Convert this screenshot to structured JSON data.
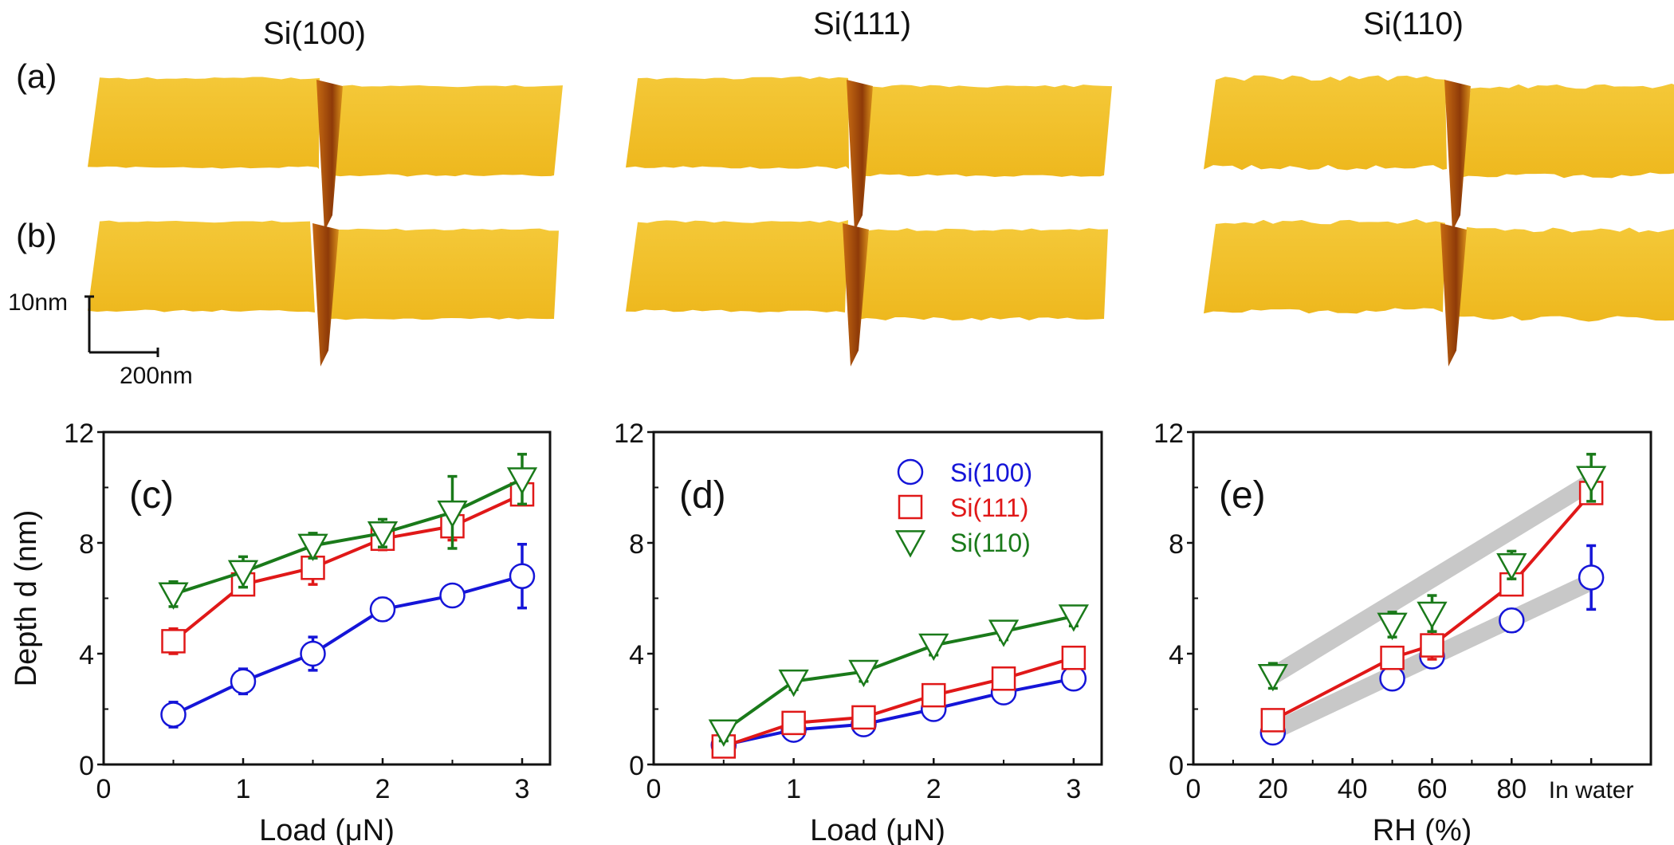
{
  "figure": {
    "columns": [
      "Si(100)",
      "Si(111)",
      "Si(110)"
    ],
    "row_labels": [
      "(a)",
      "(b)"
    ],
    "scale_bar": {
      "vertical": "10nm",
      "horizontal": "200nm"
    },
    "afm_color": "#f2c230"
  },
  "chart_data": [
    {
      "panel": "(c)",
      "type": "line",
      "xlabel": "Load (μN)",
      "ylabel": "Depth d (nm)",
      "xlim": [
        0,
        3.2
      ],
      "ylim": [
        0,
        12
      ],
      "xticks": [
        0,
        1,
        2,
        3
      ],
      "yticks": [
        0,
        4,
        8,
        12
      ],
      "x": [
        0.5,
        1.0,
        1.5,
        2.0,
        2.5,
        3.0
      ],
      "series": [
        {
          "name": "Si(100)",
          "color": "#1515d8",
          "marker": "circle",
          "values": [
            1.8,
            3.0,
            4.0,
            5.6,
            6.1,
            6.8
          ],
          "errors": [
            0.45,
            0.45,
            0.6,
            0.4,
            0.25,
            1.15
          ]
        },
        {
          "name": "Si(111)",
          "color": "#e01818",
          "marker": "square",
          "values": [
            4.45,
            6.5,
            7.1,
            8.15,
            8.6,
            9.75
          ],
          "errors": [
            0.45,
            0.35,
            0.6,
            0.4,
            0.5,
            0.3
          ]
        },
        {
          "name": "Si(110)",
          "color": "#1a7a1a",
          "marker": "triangle-down",
          "values": [
            6.15,
            6.95,
            7.9,
            8.35,
            9.1,
            10.3
          ],
          "errors": [
            0.45,
            0.55,
            0.45,
            0.5,
            1.3,
            0.9
          ]
        }
      ]
    },
    {
      "panel": "(d)",
      "type": "line",
      "xlabel": "Load (μN)",
      "ylabel": "",
      "xlim": [
        0,
        3.2
      ],
      "ylim": [
        0,
        12
      ],
      "xticks": [
        0,
        1,
        2,
        3
      ],
      "yticks": [
        0,
        4,
        8,
        12
      ],
      "legend": {
        "position": "top-right",
        "entries": [
          "Si(100)",
          "Si(111)",
          "Si(110)"
        ]
      },
      "x": [
        0.5,
        1.0,
        1.5,
        2.0,
        2.5,
        3.0
      ],
      "series": [
        {
          "name": "Si(100)",
          "color": "#1515d8",
          "marker": "circle",
          "values": [
            0.7,
            1.25,
            1.45,
            2.0,
            2.6,
            3.1
          ],
          "errors": [
            0.2,
            0.3,
            0.25,
            0.3,
            0.25,
            0.3
          ]
        },
        {
          "name": "Si(111)",
          "color": "#e01818",
          "marker": "square",
          "values": [
            0.65,
            1.5,
            1.7,
            2.5,
            3.1,
            3.85
          ],
          "errors": [
            0.15,
            0.2,
            0.2,
            0.2,
            0.15,
            0.2
          ]
        },
        {
          "name": "Si(110)",
          "color": "#1a7a1a",
          "marker": "triangle-down",
          "values": [
            1.2,
            3.0,
            3.35,
            4.3,
            4.8,
            5.35
          ],
          "errors": [
            0.35,
            0.3,
            0.35,
            0.35,
            0.3,
            0.35
          ]
        }
      ]
    },
    {
      "panel": "(e)",
      "type": "line",
      "xlabel": "RH (%)",
      "ylabel": "",
      "xlim": [
        0,
        115
      ],
      "ylim": [
        0,
        12
      ],
      "xticks": [
        0,
        20,
        40,
        60,
        80,
        100
      ],
      "xtick_labels": [
        "0",
        "20",
        "40",
        "60",
        "80",
        "In water"
      ],
      "yticks": [
        0,
        4,
        8,
        12
      ],
      "x": [
        20,
        50,
        60,
        80,
        100
      ],
      "series": [
        {
          "name": "Si(100)",
          "color": "#1515d8",
          "marker": "circle",
          "values": [
            1.15,
            3.1,
            3.9,
            5.2,
            6.75
          ],
          "errors": [
            0.1,
            0.2,
            0.2,
            0.4,
            1.15
          ],
          "connected": false
        },
        {
          "name": "Si(111)",
          "color": "#e01818",
          "marker": "square",
          "values": [
            1.6,
            3.85,
            4.3,
            6.5,
            9.8
          ],
          "errors": [
            0.2,
            0.2,
            0.5,
            0.35,
            0.35
          ],
          "connected": true
        },
        {
          "name": "Si(110)",
          "color": "#1a7a1a",
          "marker": "triangle-down",
          "values": [
            3.2,
            5.05,
            5.45,
            7.2,
            10.35
          ],
          "errors": [
            0.45,
            0.45,
            0.65,
            0.5,
            0.85
          ],
          "connected": false
        }
      ],
      "trend_bands": [
        {
          "color": "#c8c8c8",
          "from": [
            20,
            3.2
          ],
          "to": [
            100,
            10.2
          ]
        },
        {
          "color": "#c8c8c8",
          "from": [
            20,
            1.2
          ],
          "to": [
            100,
            6.6
          ]
        }
      ]
    }
  ]
}
